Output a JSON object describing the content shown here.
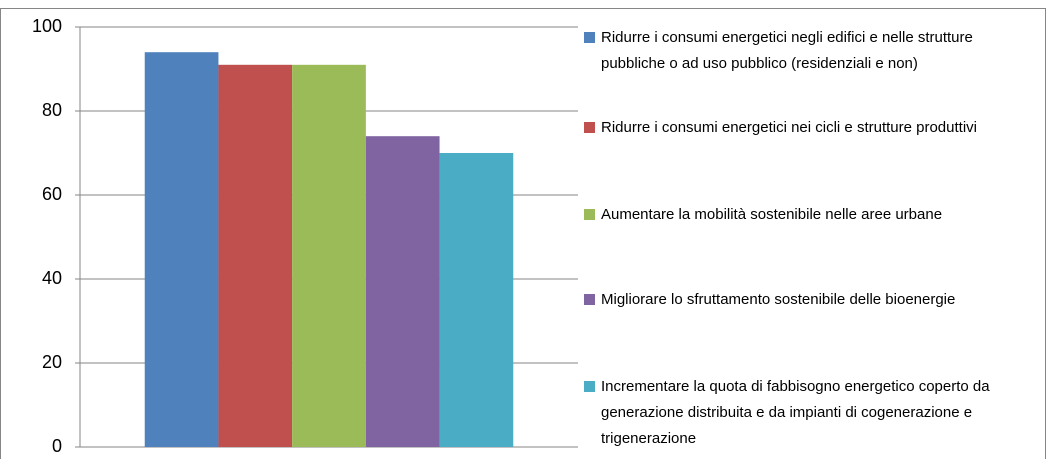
{
  "chart_data": {
    "type": "bar",
    "categories": [
      null
    ],
    "series": [
      {
        "name": "Ridurre i consumi energetici negli edifici e nelle strutture pubbliche o ad uso pubblico (residenziali e non)",
        "color": "#4f81bd",
        "values": [
          94
        ]
      },
      {
        "name": "Ridurre i consumi energetici nei cicli e strutture produttivi",
        "color": "#c0504d",
        "values": [
          91
        ]
      },
      {
        "name": "Aumentare la mobilità sostenibile nelle aree urbane",
        "color": "#9bbb59",
        "values": [
          91
        ]
      },
      {
        "name": "Migliorare lo sfruttamento sostenibile delle bioenergie",
        "color": "#8064a2",
        "values": [
          74
        ]
      },
      {
        "name": "Incrementare la quota di fabbisogno energetico coperto da generazione distribuita e da impianti di cogenerazione e trigenerazione",
        "color": "#4bacc6",
        "values": [
          70
        ]
      }
    ],
    "ylim": [
      0,
      100
    ],
    "yticks": [
      0,
      20,
      40,
      60,
      80,
      100
    ],
    "grid": true,
    "legend": "right"
  }
}
